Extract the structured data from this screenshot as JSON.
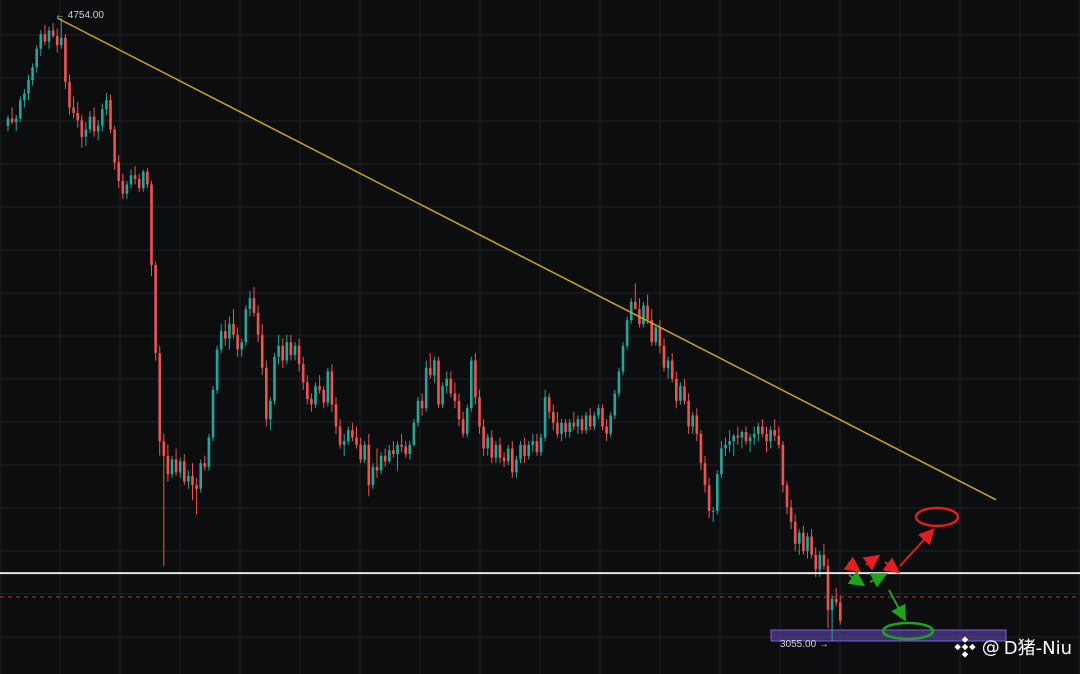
{
  "chart_data": {
    "type": "candlestick",
    "title": "",
    "grid": true,
    "y_price_high_label": "4754.00",
    "y_price_low_label": "3055.00",
    "levels": {
      "resistance": 3240,
      "mid_dashed": 3175,
      "support_zone_low": 3055,
      "support_zone_high": 3070
    },
    "trendline": {
      "start": {
        "x": 12,
        "y": 4754
      },
      "end": {
        "x": 241,
        "y": 3440
      }
    },
    "colors": {
      "up": "#26a69a",
      "down": "#ef5350",
      "background": "#0c0d0f",
      "grid": "#1e2127",
      "trendline": "#c9a51c",
      "resistance": "#e6e6e6",
      "dashed": "#c0392b",
      "zone": "#6a4fb8"
    },
    "candles": [
      [
        4460,
        4488,
        4445,
        4480
      ],
      [
        4480,
        4510,
        4465,
        4470
      ],
      [
        4470,
        4490,
        4445,
        4480
      ],
      [
        4480,
        4540,
        4470,
        4530
      ],
      [
        4530,
        4560,
        4510,
        4548
      ],
      [
        4548,
        4600,
        4530,
        4585
      ],
      [
        4585,
        4630,
        4570,
        4620
      ],
      [
        4620,
        4680,
        4605,
        4670
      ],
      [
        4670,
        4720,
        4650,
        4710
      ],
      [
        4710,
        4735,
        4680,
        4690
      ],
      [
        4690,
        4730,
        4670,
        4720
      ],
      [
        4720,
        4740,
        4700,
        4705
      ],
      [
        4705,
        4725,
        4660,
        4680
      ],
      [
        4680,
        4754,
        4670,
        4700
      ],
      [
        4700,
        4710,
        4560,
        4580
      ],
      [
        4580,
        4600,
        4490,
        4510
      ],
      [
        4510,
        4540,
        4480,
        4495
      ],
      [
        4495,
        4525,
        4455,
        4475
      ],
      [
        4475,
        4490,
        4400,
        4430
      ],
      [
        4430,
        4470,
        4405,
        4450
      ],
      [
        4450,
        4500,
        4440,
        4485
      ],
      [
        4485,
        4510,
        4430,
        4445
      ],
      [
        4445,
        4475,
        4420,
        4460
      ],
      [
        4460,
        4520,
        4445,
        4505
      ],
      [
        4505,
        4550,
        4490,
        4530
      ],
      [
        4530,
        4545,
        4440,
        4450
      ],
      [
        4450,
        4460,
        4340,
        4360
      ],
      [
        4360,
        4380,
        4290,
        4310
      ],
      [
        4310,
        4330,
        4260,
        4275
      ],
      [
        4275,
        4310,
        4260,
        4300
      ],
      [
        4300,
        4340,
        4290,
        4325
      ],
      [
        4325,
        4350,
        4300,
        4315
      ],
      [
        4315,
        4330,
        4280,
        4290
      ],
      [
        4290,
        4340,
        4280,
        4335
      ],
      [
        4335,
        4345,
        4290,
        4300
      ],
      [
        4300,
        4310,
        4050,
        4080
      ],
      [
        4080,
        4090,
        3820,
        3840
      ],
      [
        3840,
        3860,
        3560,
        3600
      ],
      [
        3600,
        3620,
        3260,
        3560
      ],
      [
        3560,
        3590,
        3490,
        3510
      ],
      [
        3510,
        3560,
        3500,
        3550
      ],
      [
        3550,
        3580,
        3505,
        3515
      ],
      [
        3515,
        3555,
        3500,
        3545
      ],
      [
        3545,
        3565,
        3480,
        3490
      ],
      [
        3490,
        3520,
        3470,
        3505
      ],
      [
        3505,
        3540,
        3440,
        3480
      ],
      [
        3480,
        3500,
        3400,
        3470
      ],
      [
        3470,
        3550,
        3460,
        3540
      ],
      [
        3540,
        3560,
        3520,
        3530
      ],
      [
        3530,
        3620,
        3520,
        3610
      ],
      [
        3610,
        3750,
        3600,
        3740
      ],
      [
        3740,
        3860,
        3730,
        3850
      ],
      [
        3850,
        3920,
        3840,
        3900
      ],
      [
        3900,
        3930,
        3860,
        3880
      ],
      [
        3880,
        3940,
        3850,
        3920
      ],
      [
        3920,
        3960,
        3880,
        3890
      ],
      [
        3890,
        3910,
        3830,
        3850
      ],
      [
        3850,
        3880,
        3830,
        3870
      ],
      [
        3870,
        3970,
        3860,
        3960
      ],
      [
        3960,
        4010,
        3940,
        3990
      ],
      [
        3990,
        4020,
        3940,
        3950
      ],
      [
        3950,
        3970,
        3870,
        3890
      ],
      [
        3890,
        3920,
        3780,
        3800
      ],
      [
        3800,
        3820,
        3640,
        3660
      ],
      [
        3660,
        3720,
        3630,
        3710
      ],
      [
        3710,
        3840,
        3700,
        3830
      ],
      [
        3830,
        3890,
        3810,
        3860
      ],
      [
        3860,
        3880,
        3800,
        3820
      ],
      [
        3820,
        3890,
        3810,
        3870
      ],
      [
        3870,
        3890,
        3820,
        3835
      ],
      [
        3835,
        3870,
        3820,
        3860
      ],
      [
        3860,
        3880,
        3790,
        3810
      ],
      [
        3810,
        3830,
        3740,
        3760
      ],
      [
        3760,
        3780,
        3700,
        3715
      ],
      [
        3715,
        3730,
        3680,
        3700
      ],
      [
        3700,
        3760,
        3690,
        3750
      ],
      [
        3750,
        3780,
        3730,
        3740
      ],
      [
        3740,
        3750,
        3690,
        3705
      ],
      [
        3705,
        3800,
        3695,
        3790
      ],
      [
        3790,
        3810,
        3680,
        3700
      ],
      [
        3700,
        3720,
        3620,
        3640
      ],
      [
        3640,
        3660,
        3580,
        3590
      ],
      [
        3590,
        3620,
        3560,
        3600
      ],
      [
        3600,
        3640,
        3590,
        3630
      ],
      [
        3630,
        3650,
        3600,
        3610
      ],
      [
        3610,
        3640,
        3580,
        3590
      ],
      [
        3590,
        3610,
        3540,
        3550
      ],
      [
        3550,
        3600,
        3540,
        3590
      ],
      [
        3590,
        3620,
        3450,
        3480
      ],
      [
        3480,
        3540,
        3470,
        3530
      ],
      [
        3530,
        3580,
        3500,
        3520
      ],
      [
        3520,
        3570,
        3510,
        3560
      ],
      [
        3560,
        3580,
        3530,
        3545
      ],
      [
        3545,
        3590,
        3540,
        3575
      ],
      [
        3575,
        3600,
        3555,
        3565
      ],
      [
        3565,
        3600,
        3520,
        3590
      ],
      [
        3590,
        3620,
        3570,
        3585
      ],
      [
        3585,
        3600,
        3555,
        3565
      ],
      [
        3565,
        3600,
        3550,
        3590
      ],
      [
        3590,
        3660,
        3585,
        3650
      ],
      [
        3650,
        3720,
        3640,
        3710
      ],
      [
        3710,
        3730,
        3670,
        3690
      ],
      [
        3690,
        3820,
        3680,
        3800
      ],
      [
        3800,
        3840,
        3770,
        3780
      ],
      [
        3780,
        3830,
        3760,
        3820
      ],
      [
        3820,
        3830,
        3690,
        3700
      ],
      [
        3700,
        3760,
        3690,
        3750
      ],
      [
        3750,
        3790,
        3730,
        3770
      ],
      [
        3770,
        3790,
        3720,
        3730
      ],
      [
        3730,
        3760,
        3690,
        3710
      ],
      [
        3710,
        3730,
        3640,
        3660
      ],
      [
        3660,
        3680,
        3610,
        3620
      ],
      [
        3620,
        3700,
        3610,
        3690
      ],
      [
        3690,
        3830,
        3680,
        3820
      ],
      [
        3820,
        3840,
        3700,
        3720
      ],
      [
        3720,
        3740,
        3620,
        3640
      ],
      [
        3640,
        3660,
        3560,
        3580
      ],
      [
        3580,
        3620,
        3560,
        3610
      ],
      [
        3610,
        3630,
        3540,
        3555
      ],
      [
        3555,
        3600,
        3540,
        3590
      ],
      [
        3590,
        3610,
        3540,
        3555
      ],
      [
        3555,
        3570,
        3530,
        3545
      ],
      [
        3545,
        3590,
        3535,
        3580
      ],
      [
        3580,
        3600,
        3500,
        3515
      ],
      [
        3515,
        3560,
        3500,
        3550
      ],
      [
        3550,
        3600,
        3540,
        3590
      ],
      [
        3590,
        3610,
        3540,
        3560
      ],
      [
        3560,
        3600,
        3550,
        3590
      ],
      [
        3590,
        3620,
        3570,
        3600
      ],
      [
        3600,
        3620,
        3560,
        3570
      ],
      [
        3570,
        3620,
        3560,
        3610
      ],
      [
        3610,
        3740,
        3600,
        3720
      ],
      [
        3720,
        3730,
        3660,
        3680
      ],
      [
        3680,
        3700,
        3630,
        3650
      ],
      [
        3650,
        3680,
        3610,
        3620
      ],
      [
        3620,
        3660,
        3600,
        3650
      ],
      [
        3650,
        3660,
        3610,
        3625
      ],
      [
        3625,
        3660,
        3610,
        3650
      ],
      [
        3650,
        3680,
        3630,
        3640
      ],
      [
        3640,
        3670,
        3620,
        3660
      ],
      [
        3660,
        3670,
        3620,
        3630
      ],
      [
        3630,
        3680,
        3620,
        3670
      ],
      [
        3670,
        3690,
        3630,
        3640
      ],
      [
        3640,
        3680,
        3630,
        3670
      ],
      [
        3670,
        3700,
        3660,
        3690
      ],
      [
        3690,
        3700,
        3630,
        3640
      ],
      [
        3640,
        3660,
        3600,
        3620
      ],
      [
        3620,
        3680,
        3610,
        3670
      ],
      [
        3670,
        3740,
        3660,
        3730
      ],
      [
        3730,
        3800,
        3720,
        3790
      ],
      [
        3790,
        3870,
        3780,
        3860
      ],
      [
        3860,
        3940,
        3850,
        3930
      ],
      [
        3930,
        3990,
        3920,
        3980
      ],
      [
        3980,
        4030,
        3960,
        3960
      ],
      [
        3960,
        3990,
        3910,
        3920
      ],
      [
        3920,
        3980,
        3910,
        3970
      ],
      [
        3970,
        4000,
        3920,
        3930
      ],
      [
        3930,
        3960,
        3860,
        3870
      ],
      [
        3870,
        3920,
        3860,
        3910
      ],
      [
        3910,
        3930,
        3840,
        3860
      ],
      [
        3860,
        3880,
        3790,
        3800
      ],
      [
        3800,
        3830,
        3770,
        3820
      ],
      [
        3820,
        3840,
        3760,
        3770
      ],
      [
        3770,
        3790,
        3690,
        3710
      ],
      [
        3710,
        3760,
        3700,
        3750
      ],
      [
        3750,
        3770,
        3700,
        3710
      ],
      [
        3710,
        3730,
        3620,
        3640
      ],
      [
        3640,
        3680,
        3620,
        3670
      ],
      [
        3670,
        3690,
        3600,
        3620
      ],
      [
        3620,
        3630,
        3520,
        3540
      ],
      [
        3540,
        3560,
        3460,
        3480
      ],
      [
        3480,
        3500,
        3390,
        3410
      ],
      [
        3410,
        3420,
        3380,
        3410
      ],
      [
        3410,
        3520,
        3400,
        3510
      ],
      [
        3510,
        3600,
        3500,
        3580
      ],
      [
        3580,
        3610,
        3560,
        3590
      ],
      [
        3590,
        3630,
        3570,
        3600
      ],
      [
        3600,
        3620,
        3560,
        3615
      ],
      [
        3615,
        3640,
        3590,
        3610
      ],
      [
        3610,
        3630,
        3580,
        3625
      ],
      [
        3625,
        3640,
        3590,
        3600
      ],
      [
        3600,
        3620,
        3570,
        3610
      ],
      [
        3610,
        3640,
        3590,
        3620
      ],
      [
        3620,
        3650,
        3600,
        3640
      ],
      [
        3640,
        3660,
        3610,
        3620
      ],
      [
        3620,
        3640,
        3570,
        3600
      ],
      [
        3600,
        3640,
        3580,
        3630
      ],
      [
        3630,
        3660,
        3600,
        3615
      ],
      [
        3615,
        3640,
        3580,
        3590
      ],
      [
        3590,
        3600,
        3460,
        3480
      ],
      [
        3480,
        3490,
        3400,
        3420
      ],
      [
        3420,
        3440,
        3360,
        3380
      ],
      [
        3380,
        3400,
        3300,
        3320
      ],
      [
        3320,
        3360,
        3290,
        3350
      ],
      [
        3350,
        3370,
        3290,
        3300
      ],
      [
        3300,
        3350,
        3280,
        3340
      ],
      [
        3340,
        3360,
        3280,
        3290
      ],
      [
        3290,
        3310,
        3230,
        3250
      ],
      [
        3250,
        3300,
        3230,
        3290
      ],
      [
        3290,
        3320,
        3250,
        3260
      ],
      [
        3260,
        3280,
        3090,
        3140
      ],
      [
        3140,
        3180,
        3055,
        3170
      ],
      [
        3170,
        3200,
        3150,
        3160
      ],
      [
        3160,
        3180,
        3100,
        3110
      ]
    ]
  },
  "watermark": {
    "at": "@",
    "handle": "D猪-Niu"
  }
}
